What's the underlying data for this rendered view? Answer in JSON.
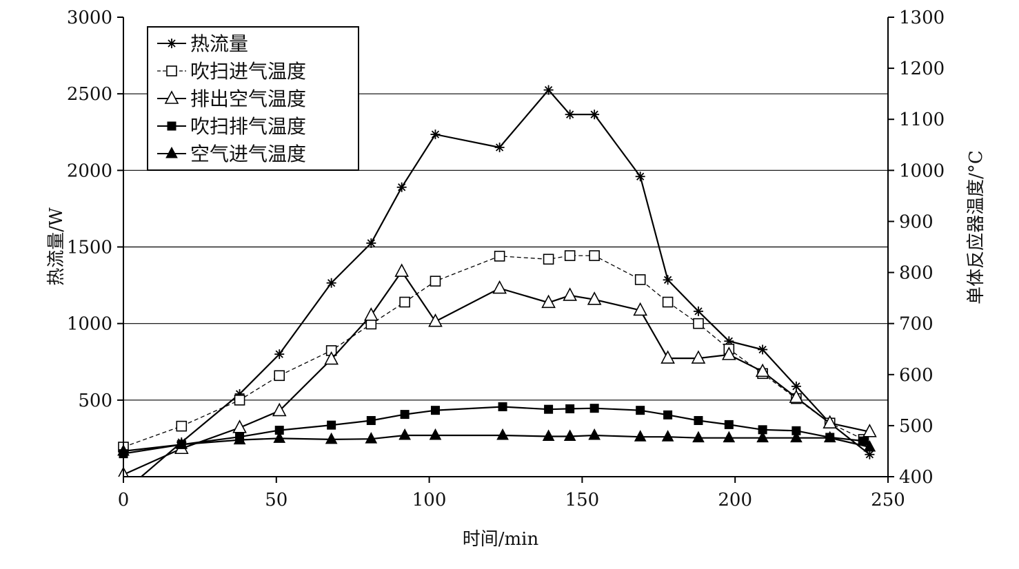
{
  "chart_data": {
    "type": "line",
    "xlabel": "时间/min",
    "ylabel_left": "热流量/W",
    "ylabel_right": "单体反应器温度/°C",
    "xlim": [
      0,
      250
    ],
    "ylim_left": [
      0,
      3000
    ],
    "ylim_right": [
      400,
      1300
    ],
    "x_ticks": [
      "0",
      "50",
      "100",
      "150",
      "200",
      "250"
    ],
    "y_left_ticks": [
      "500",
      "1000",
      "1500",
      "2000",
      "2500",
      "3000"
    ],
    "y_right_ticks": [
      "400",
      "500",
      "600",
      "700",
      "800",
      "900",
      "1000",
      "1100",
      "1200",
      "1300"
    ],
    "grid_y": [
      500,
      1000,
      1500,
      2000,
      2500
    ],
    "legend_position": "top-left",
    "series": [
      {
        "name": "热流量",
        "axis": "left",
        "marker": "asterisk",
        "dash": "solid",
        "x": [
          0,
          19,
          38,
          51,
          68,
          81,
          91,
          102,
          123,
          139,
          146,
          154,
          169,
          178,
          188,
          198,
          209,
          220,
          231,
          244
        ],
        "y": [
          -100,
          225,
          540,
          800,
          1265,
          1525,
          1890,
          2235,
          2150,
          2525,
          2365,
          2365,
          1960,
          1285,
          1080,
          885,
          830,
          590,
          350,
          145
        ]
      },
      {
        "name": "吹扫进气温度",
        "axis": "right",
        "marker": "open-square",
        "dash": "dashed",
        "x": [
          0,
          19,
          38,
          51,
          68,
          81,
          92,
          102,
          123,
          139,
          146,
          154,
          169,
          178,
          188,
          198,
          209,
          220,
          231,
          242
        ],
        "y": [
          458,
          499,
          550,
          598,
          647,
          699,
          742,
          783,
          832,
          826,
          833,
          833,
          786,
          742,
          700,
          650,
          602,
          553,
          505,
          473
        ]
      },
      {
        "name": "排出空气温度",
        "axis": "right",
        "marker": "open-triangle",
        "dash": "solid",
        "x": [
          0,
          19,
          38,
          51,
          68,
          81,
          91,
          102,
          123,
          139,
          146,
          154,
          169,
          178,
          188,
          198,
          209,
          220,
          231,
          244
        ],
        "y": [
          404,
          455,
          496,
          529,
          630,
          716,
          802,
          704,
          769,
          741,
          755,
          747,
          726,
          632,
          632,
          639,
          606,
          555,
          505,
          488
        ]
      },
      {
        "name": "吹扫排气温度",
        "axis": "right",
        "marker": "filled-square",
        "dash": "solid",
        "x": [
          0,
          19,
          38,
          51,
          68,
          81,
          92,
          102,
          124,
          139,
          146,
          154,
          169,
          178,
          188,
          198,
          209,
          220,
          231,
          242
        ],
        "y": [
          445,
          463,
          478,
          491,
          501,
          510,
          522,
          530,
          537,
          532,
          533,
          534,
          530,
          521,
          510,
          502,
          492,
          490,
          477,
          470
        ]
      },
      {
        "name": "空气进气温度",
        "axis": "right",
        "marker": "filled-triangle",
        "dash": "solid",
        "x": [
          0,
          19,
          38,
          51,
          68,
          81,
          92,
          102,
          124,
          139,
          146,
          154,
          169,
          178,
          188,
          198,
          209,
          220,
          231,
          244
        ],
        "y": [
          450,
          463,
          472,
          475,
          473,
          474,
          481,
          481,
          481,
          479,
          479,
          481,
          478,
          478,
          476,
          476,
          476,
          476,
          476,
          458
        ]
      }
    ]
  }
}
